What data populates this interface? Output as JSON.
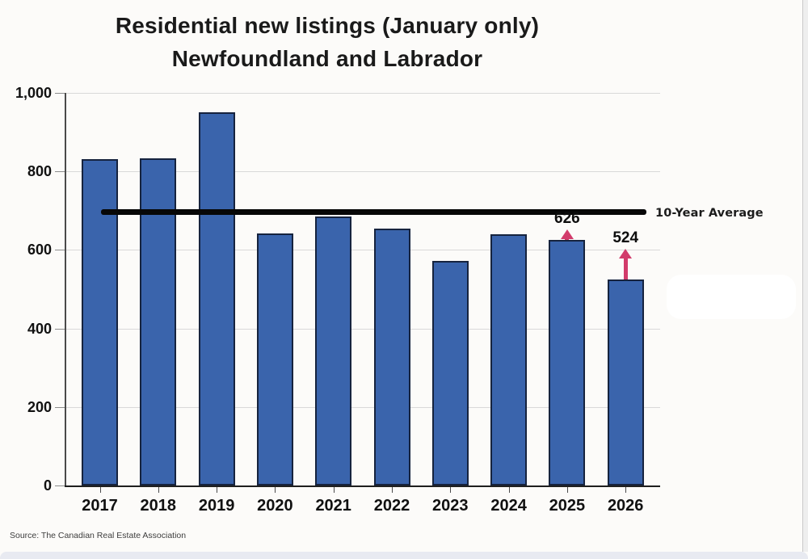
{
  "source": "Source: The Canadian Real Estate Association",
  "chart_data": {
    "type": "bar",
    "title": "Residential new listings (January only) Newfoundland and Labrador",
    "title_lines": [
      "Residential new listings (January only)",
      "Newfoundland and Labrador"
    ],
    "categories": [
      "2017",
      "2018",
      "2019",
      "2020",
      "2021",
      "2022",
      "2023",
      "2024",
      "2025",
      "2026"
    ],
    "values": [
      832,
      834,
      950,
      643,
      686,
      654,
      573,
      639,
      626,
      524
    ],
    "xlabel": "",
    "ylabel": "",
    "ylim": [
      0,
      1000
    ],
    "yticks": [
      {
        "value": 0,
        "label": "0"
      },
      {
        "value": 200,
        "label": "200"
      },
      {
        "value": 400,
        "label": "400"
      },
      {
        "value": 600,
        "label": "600"
      },
      {
        "value": 800,
        "label": "800"
      },
      {
        "value": 1000,
        "label": "1,000"
      }
    ],
    "grid": "horizontal",
    "legend": "none",
    "average_line": {
      "value": 697,
      "label": "10-Year Average"
    },
    "annotations": [
      {
        "year": "2025",
        "label": "626",
        "arrow": "short"
      },
      {
        "year": "2026",
        "label": "524",
        "arrow": "long"
      }
    ],
    "colors": {
      "bar_fill": "#3a64ac",
      "bar_border": "#16233e",
      "gridline": "#d9d9d9",
      "average_line": "#070707",
      "arrow": "#d23b6b",
      "text": "#111111"
    }
  }
}
